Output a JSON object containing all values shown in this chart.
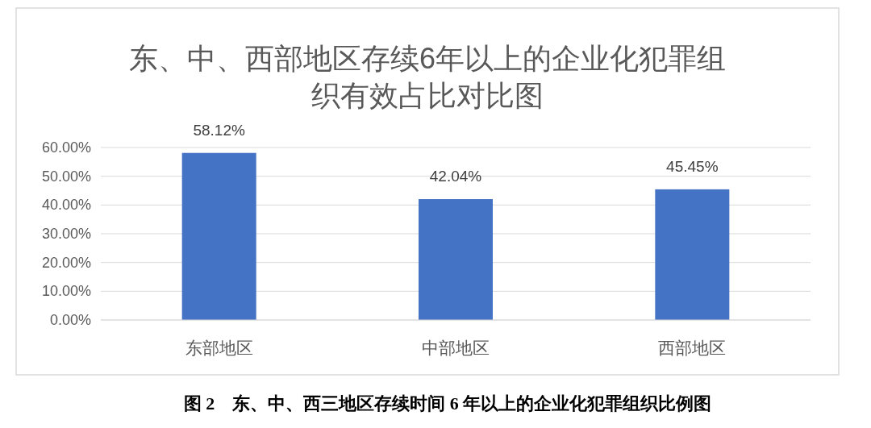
{
  "chart_data": {
    "type": "bar",
    "title": "东、中、西部地区存续6年以上的企业化犯罪组织有效占比对比图",
    "categories": [
      "东部地区",
      "中部地区",
      "西部地区"
    ],
    "values": [
      58.12,
      42.04,
      45.45
    ],
    "value_labels": [
      "58.12%",
      "42.04%",
      "45.45%"
    ],
    "color": "#4472c4",
    "ylim": [
      0,
      60
    ],
    "yticks": [
      {
        "value": 0,
        "label": "0.00%"
      },
      {
        "value": 10,
        "label": "10.00%"
      },
      {
        "value": 20,
        "label": "20.00%"
      },
      {
        "value": 30,
        "label": "30.00%"
      },
      {
        "value": 40,
        "label": "40.00%"
      },
      {
        "value": 50,
        "label": "50.00%"
      },
      {
        "value": 60,
        "label": "60.00%"
      }
    ],
    "grid": "y",
    "annotations": [
      "图 2　东、中、西三地区存续时间 6 年以上的企业化犯罪组织比例图"
    ]
  }
}
